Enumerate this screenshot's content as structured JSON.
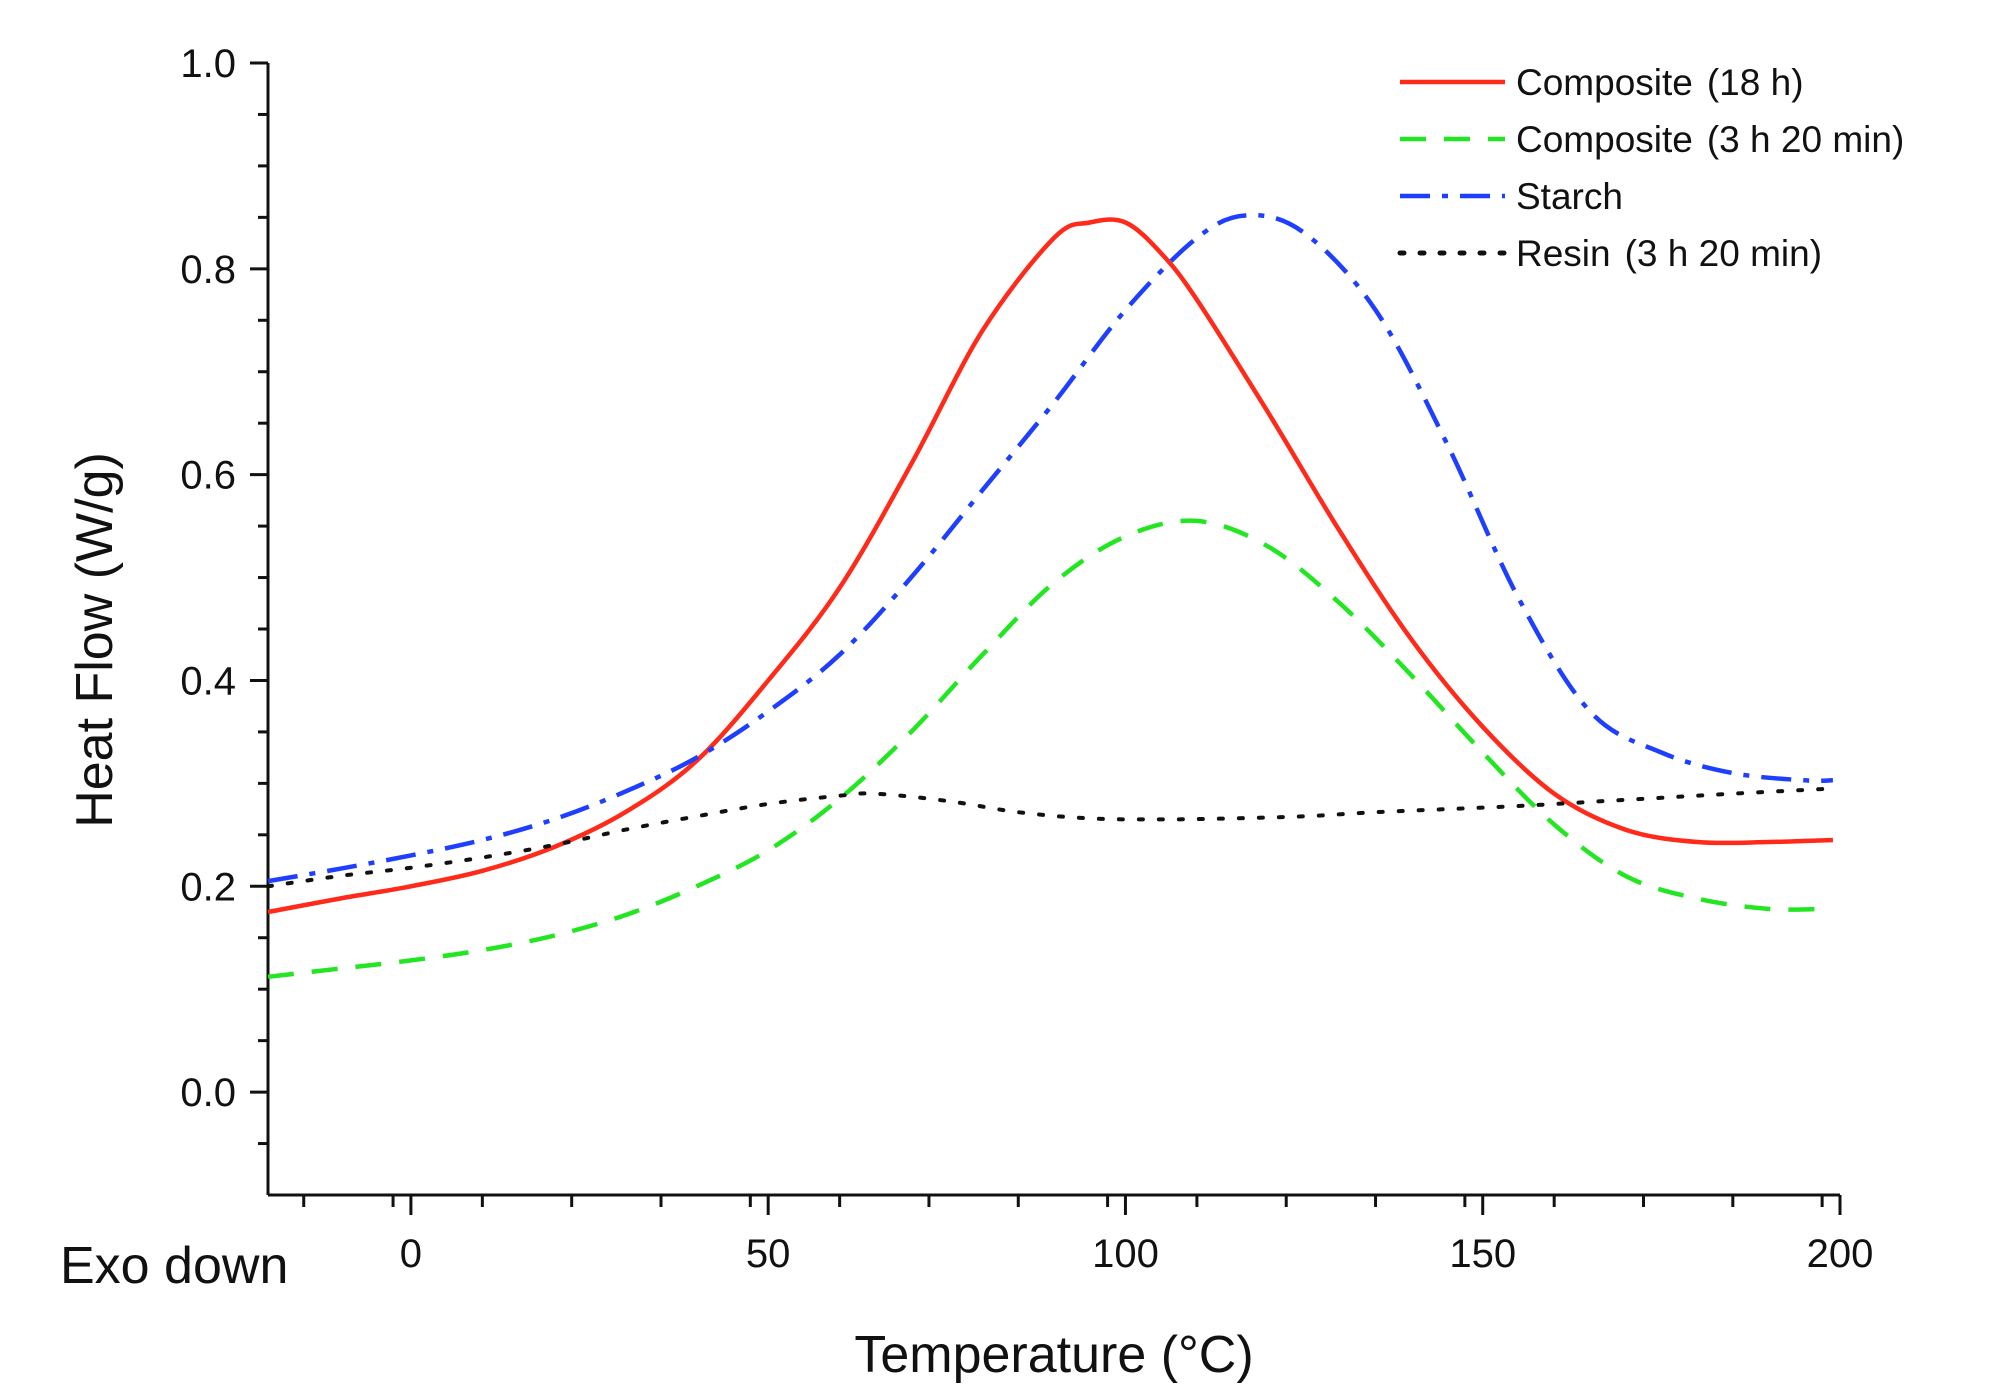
{
  "chart_data": {
    "type": "line",
    "title": "",
    "xlabel": "Temperature (°C)",
    "ylabel": "Heat Flow (W/g)",
    "annotation": "Exo down",
    "xlim": [
      -20,
      200
    ],
    "ylim": [
      -0.1,
      1.0
    ],
    "x_ticks": [
      0,
      50,
      100,
      150,
      200
    ],
    "x_tick_labels": [
      "0",
      "50",
      "100",
      "150",
      "200"
    ],
    "y_ticks": [
      0.0,
      0.2,
      0.4,
      0.6,
      0.8,
      1.0
    ],
    "y_tick_labels": [
      "0.0",
      "0.2",
      "0.4",
      "0.6",
      "0.8",
      "1.0"
    ],
    "grid": false,
    "legend_position": "top-right",
    "series": [
      {
        "name": "Composite",
        "name_suffix": "(18 h)",
        "color": "#ff2a1a",
        "style": "solid",
        "points": [
          [
            -20,
            0.175
          ],
          [
            -10,
            0.188
          ],
          [
            0,
            0.2
          ],
          [
            10,
            0.215
          ],
          [
            20,
            0.238
          ],
          [
            30,
            0.272
          ],
          [
            40,
            0.322
          ],
          [
            50,
            0.4
          ],
          [
            60,
            0.49
          ],
          [
            70,
            0.61
          ],
          [
            80,
            0.74
          ],
          [
            90,
            0.83
          ],
          [
            95,
            0.845
          ],
          [
            100,
            0.845
          ],
          [
            105,
            0.815
          ],
          [
            110,
            0.77
          ],
          [
            120,
            0.66
          ],
          [
            130,
            0.545
          ],
          [
            140,
            0.44
          ],
          [
            150,
            0.355
          ],
          [
            160,
            0.29
          ],
          [
            170,
            0.255
          ],
          [
            180,
            0.243
          ],
          [
            190,
            0.243
          ],
          [
            199,
            0.245
          ]
        ]
      },
      {
        "name": "Composite",
        "name_suffix": "(3 h 20 min)",
        "color": "#22e622",
        "style": "dashed",
        "points": [
          [
            -20,
            0.112
          ],
          [
            -10,
            0.12
          ],
          [
            0,
            0.128
          ],
          [
            10,
            0.138
          ],
          [
            20,
            0.152
          ],
          [
            30,
            0.172
          ],
          [
            40,
            0.2
          ],
          [
            50,
            0.235
          ],
          [
            60,
            0.285
          ],
          [
            70,
            0.35
          ],
          [
            80,
            0.425
          ],
          [
            90,
            0.495
          ],
          [
            100,
            0.54
          ],
          [
            110,
            0.555
          ],
          [
            120,
            0.53
          ],
          [
            130,
            0.475
          ],
          [
            140,
            0.405
          ],
          [
            150,
            0.33
          ],
          [
            160,
            0.26
          ],
          [
            170,
            0.21
          ],
          [
            180,
            0.188
          ],
          [
            190,
            0.178
          ],
          [
            198,
            0.178
          ]
        ]
      },
      {
        "name": "Starch",
        "name_suffix": "",
        "color": "#1f3fff",
        "style": "dashdot",
        "points": [
          [
            -20,
            0.205
          ],
          [
            -10,
            0.217
          ],
          [
            0,
            0.23
          ],
          [
            10,
            0.245
          ],
          [
            20,
            0.265
          ],
          [
            30,
            0.292
          ],
          [
            40,
            0.325
          ],
          [
            50,
            0.37
          ],
          [
            60,
            0.425
          ],
          [
            70,
            0.5
          ],
          [
            80,
            0.585
          ],
          [
            90,
            0.67
          ],
          [
            100,
            0.76
          ],
          [
            110,
            0.83
          ],
          [
            117,
            0.852
          ],
          [
            125,
            0.835
          ],
          [
            135,
            0.76
          ],
          [
            145,
            0.63
          ],
          [
            155,
            0.48
          ],
          [
            165,
            0.37
          ],
          [
            175,
            0.33
          ],
          [
            185,
            0.31
          ],
          [
            195,
            0.303
          ],
          [
            199,
            0.303
          ]
        ]
      },
      {
        "name": "Resin",
        "name_suffix": "(3 h 20 min)",
        "color": "#111111",
        "style": "dotted",
        "points": [
          [
            -20,
            0.2
          ],
          [
            -10,
            0.21
          ],
          [
            0,
            0.218
          ],
          [
            10,
            0.228
          ],
          [
            20,
            0.24
          ],
          [
            30,
            0.255
          ],
          [
            40,
            0.268
          ],
          [
            50,
            0.28
          ],
          [
            60,
            0.288
          ],
          [
            65,
            0.29
          ],
          [
            75,
            0.283
          ],
          [
            85,
            0.272
          ],
          [
            95,
            0.266
          ],
          [
            105,
            0.265
          ],
          [
            115,
            0.266
          ],
          [
            125,
            0.268
          ],
          [
            135,
            0.272
          ],
          [
            145,
            0.275
          ],
          [
            155,
            0.278
          ],
          [
            165,
            0.282
          ],
          [
            175,
            0.286
          ],
          [
            185,
            0.29
          ],
          [
            199,
            0.295
          ]
        ]
      }
    ]
  }
}
